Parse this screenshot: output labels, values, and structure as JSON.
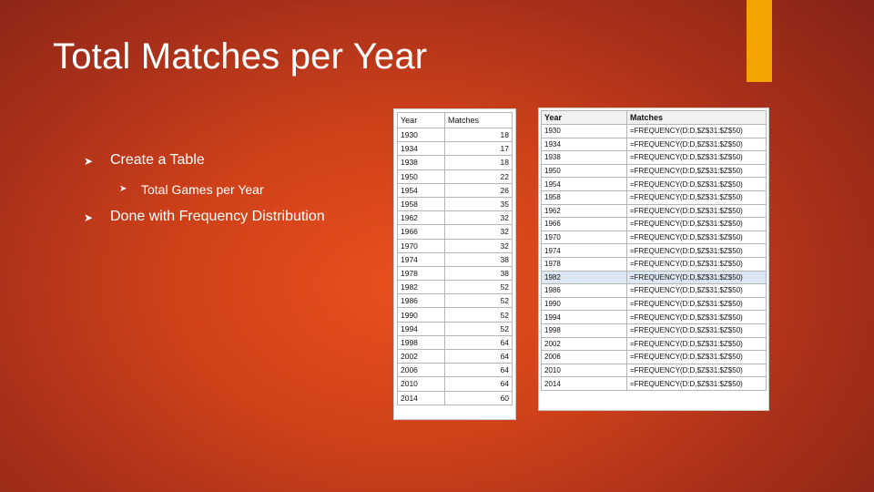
{
  "slide": {
    "title": "Total Matches per Year",
    "bullets": [
      {
        "text": "Create a Table",
        "level": 1
      },
      {
        "text": "Total Games per Year",
        "level": 2
      },
      {
        "text": "Done with Frequency Distribution",
        "level": 1
      }
    ],
    "colors": {
      "background": "#c93e1b",
      "accent": "#f4a300",
      "text": "#ffffff"
    }
  },
  "table_values": {
    "headers": [
      "Year",
      "Matches"
    ],
    "rows": [
      [
        "1930",
        "18"
      ],
      [
        "1934",
        "17"
      ],
      [
        "1938",
        "18"
      ],
      [
        "1950",
        "22"
      ],
      [
        "1954",
        "26"
      ],
      [
        "1958",
        "35"
      ],
      [
        "1962",
        "32"
      ],
      [
        "1966",
        "32"
      ],
      [
        "1970",
        "32"
      ],
      [
        "1974",
        "38"
      ],
      [
        "1978",
        "38"
      ],
      [
        "1982",
        "52"
      ],
      [
        "1986",
        "52"
      ],
      [
        "1990",
        "52"
      ],
      [
        "1994",
        "52"
      ],
      [
        "1998",
        "64"
      ],
      [
        "2002",
        "64"
      ],
      [
        "2006",
        "64"
      ],
      [
        "2010",
        "64"
      ],
      [
        "2014",
        "60"
      ]
    ]
  },
  "table_formulas": {
    "headers": [
      "Year",
      "Matches"
    ],
    "highlighted_row": "1982",
    "rows": [
      [
        "1930",
        "=FREQUENCY(D:D,$Z$31:$Z$50)"
      ],
      [
        "1934",
        "=FREQUENCY(D:D,$Z$31:$Z$50)"
      ],
      [
        "1938",
        "=FREQUENCY(D:D,$Z$31:$Z$50)"
      ],
      [
        "1950",
        "=FREQUENCY(D:D,$Z$31:$Z$50)"
      ],
      [
        "1954",
        "=FREQUENCY(D:D,$Z$31:$Z$50)"
      ],
      [
        "1958",
        "=FREQUENCY(D:D,$Z$31:$Z$50)"
      ],
      [
        "1962",
        "=FREQUENCY(D:D,$Z$31:$Z$50)"
      ],
      [
        "1966",
        "=FREQUENCY(D:D,$Z$31:$Z$50)"
      ],
      [
        "1970",
        "=FREQUENCY(D:D,$Z$31:$Z$50)"
      ],
      [
        "1974",
        "=FREQUENCY(D:D,$Z$31:$Z$50)"
      ],
      [
        "1978",
        "=FREQUENCY(D:D,$Z$31:$Z$50)"
      ],
      [
        "1982",
        "=FREQUENCY(D:D,$Z$31:$Z$50)"
      ],
      [
        "1986",
        "=FREQUENCY(D:D,$Z$31:$Z$50)"
      ],
      [
        "1990",
        "=FREQUENCY(D:D,$Z$31:$Z$50)"
      ],
      [
        "1994",
        "=FREQUENCY(D:D,$Z$31:$Z$50)"
      ],
      [
        "1998",
        "=FREQUENCY(D:D,$Z$31:$Z$50)"
      ],
      [
        "2002",
        "=FREQUENCY(D:D,$Z$31:$Z$50)"
      ],
      [
        "2006",
        "=FREQUENCY(D:D,$Z$31:$Z$50)"
      ],
      [
        "2010",
        "=FREQUENCY(D:D,$Z$31:$Z$50)"
      ],
      [
        "2014",
        "=FREQUENCY(D:D,$Z$31:$Z$50)"
      ]
    ]
  }
}
